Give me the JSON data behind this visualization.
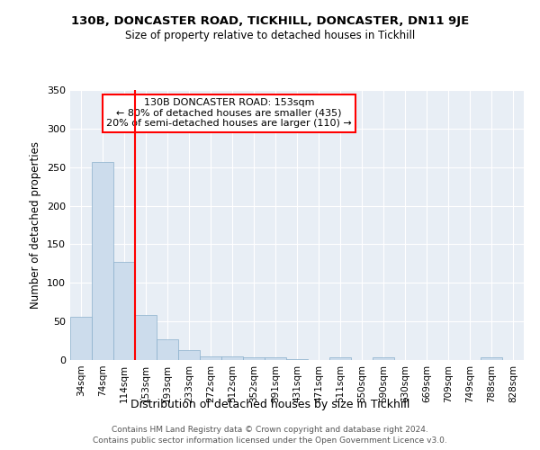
{
  "title": "130B, DONCASTER ROAD, TICKHILL, DONCASTER, DN11 9JE",
  "subtitle": "Size of property relative to detached houses in Tickhill",
  "xlabel": "Distribution of detached houses by size in Tickhill",
  "ylabel": "Number of detached properties",
  "bar_color": "#ccdcec",
  "bar_edge_color": "#8ab0cc",
  "categories": [
    "34sqm",
    "74sqm",
    "114sqm",
    "153sqm",
    "193sqm",
    "233sqm",
    "272sqm",
    "312sqm",
    "352sqm",
    "391sqm",
    "431sqm",
    "471sqm",
    "511sqm",
    "550sqm",
    "590sqm",
    "630sqm",
    "669sqm",
    "709sqm",
    "749sqm",
    "788sqm",
    "828sqm"
  ],
  "values": [
    56,
    257,
    127,
    58,
    27,
    13,
    5,
    5,
    4,
    4,
    1,
    0,
    4,
    0,
    3,
    0,
    0,
    0,
    0,
    3,
    0
  ],
  "red_line_x": 3,
  "annotation_lines": [
    "130B DONCASTER ROAD: 153sqm",
    "← 80% of detached houses are smaller (435)",
    "20% of semi-detached houses are larger (110) →"
  ],
  "ylim": [
    0,
    350
  ],
  "yticks": [
    0,
    50,
    100,
    150,
    200,
    250,
    300,
    350
  ],
  "bg_color": "#ffffff",
  "plot_bg_color": "#e8eef5",
  "grid_color": "#ffffff",
  "footer1": "Contains HM Land Registry data © Crown copyright and database right 2024.",
  "footer2": "Contains public sector information licensed under the Open Government Licence v3.0."
}
